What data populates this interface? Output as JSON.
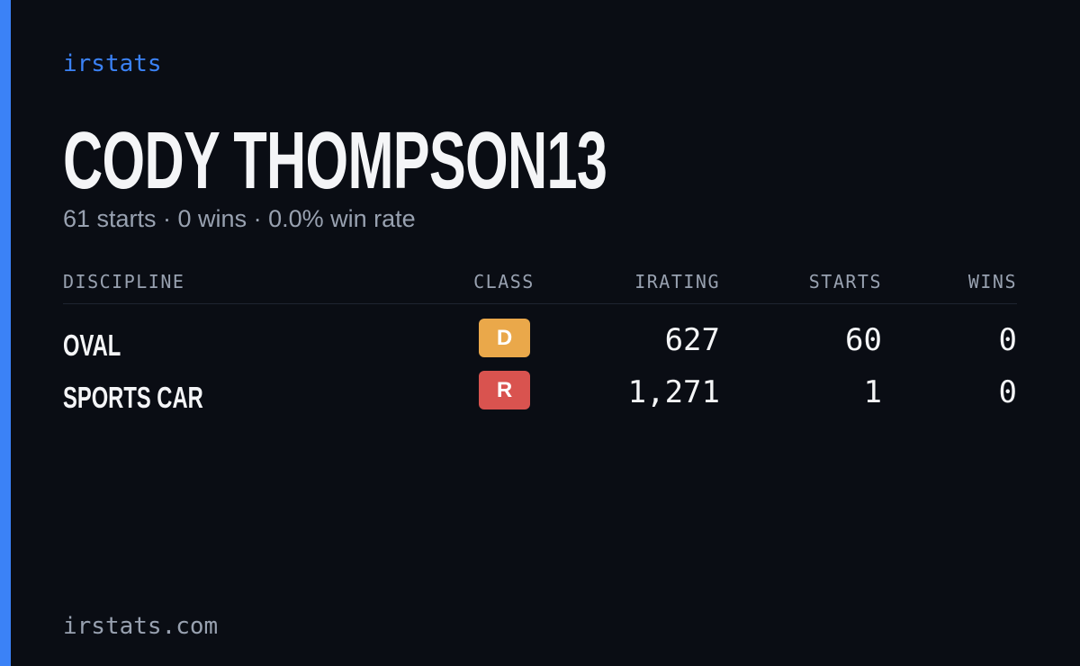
{
  "brand": "irstats",
  "driver": {
    "name": "CODY THOMPSON13",
    "summary": "61 starts · 0 wins · 0.0% win rate"
  },
  "table": {
    "headers": [
      "DISCIPLINE",
      "CLASS",
      "IRATING",
      "STARTS",
      "WINS"
    ],
    "rows": [
      {
        "discipline": "OVAL",
        "class": "D",
        "class_color": "#eaa84a",
        "irating": "627",
        "starts": "60",
        "wins": "0"
      },
      {
        "discipline": "SPORTS CAR",
        "class": "R",
        "class_color": "#d9534f",
        "irating": "1,271",
        "starts": "1",
        "wins": "0"
      }
    ]
  },
  "footer": "irstats.com"
}
